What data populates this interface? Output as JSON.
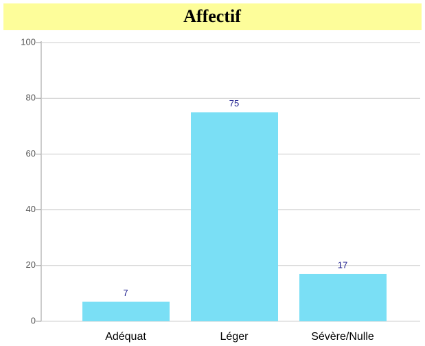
{
  "chart_data": {
    "type": "bar",
    "title": "Affectif",
    "categories": [
      "Adéquat",
      "Léger",
      "Sévère/Nulle"
    ],
    "values": [
      7,
      75,
      17
    ],
    "color": "#7adff5",
    "ylim": [
      0,
      100
    ],
    "yticks": [
      0,
      20,
      40,
      60,
      80,
      100
    ],
    "grid": true
  }
}
